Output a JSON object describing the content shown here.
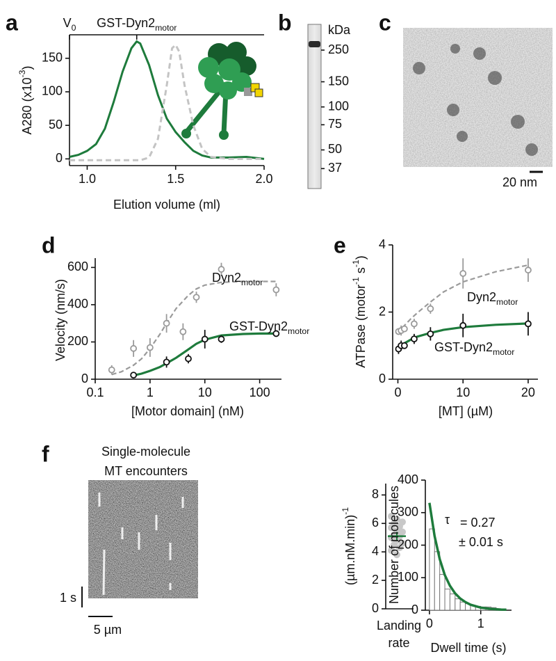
{
  "chart_data": [
    {
      "type": "line",
      "panel": "a",
      "xlabel": "Elution volume (ml)",
      "ylabel": [
        {
          "text": "A280 (x10"
        },
        {
          "sup": "-3"
        },
        {
          "text": ")"
        }
      ],
      "xlim": [
        0.9,
        2.0
      ],
      "xticks": [
        {
          "value": 1.0,
          "label": "1.0"
        },
        {
          "value": 1.5,
          "label": "1.5"
        },
        {
          "value": 2.0,
          "label": "2.0"
        }
      ],
      "ylim": [
        -10,
        185
      ],
      "yticks": [
        0,
        50,
        100,
        150
      ],
      "annotations": [
        {
          "parts": [
            {
              "text": "V"
            },
            {
              "sub": "0"
            }
          ],
          "x": 0.9
        },
        {
          "parts": [
            {
              "text": "GST-Dyn2"
            },
            {
              "sub": "motor"
            }
          ],
          "x": 1.28
        }
      ],
      "series": [
        {
          "color": "#1e7b3c",
          "style": "solid",
          "x": [
            0.9,
            0.95,
            1.0,
            1.05,
            1.1,
            1.15,
            1.2,
            1.25,
            1.28,
            1.3,
            1.35,
            1.4,
            1.45,
            1.5,
            1.55,
            1.6,
            1.65,
            1.7,
            1.8,
            1.9,
            2.0
          ],
          "values": [
            3,
            6,
            12,
            22,
            45,
            85,
            130,
            165,
            175,
            172,
            140,
            95,
            60,
            40,
            25,
            12,
            5,
            2,
            2,
            3,
            0
          ]
        },
        {
          "color": "#c4c4c4",
          "style": "dashed",
          "x": [
            0.9,
            1.1,
            1.3,
            1.35,
            1.4,
            1.45,
            1.48,
            1.5,
            1.52,
            1.55,
            1.6,
            1.65,
            1.7,
            1.8,
            2.0
          ],
          "values": [
            -2,
            -2,
            -2,
            2,
            30,
            110,
            165,
            170,
            160,
            110,
            50,
            15,
            3,
            0,
            0
          ]
        }
      ]
    },
    {
      "type": "gel",
      "panel": "b",
      "unit": "kDa",
      "log": true,
      "ylim": [
        30,
        320
      ],
      "yticks": [
        250,
        150,
        100,
        75,
        50,
        37
      ]
    },
    {
      "type": "image",
      "panel": "c",
      "scalebar": "20 nm"
    },
    {
      "type": "scatter",
      "panel": "d",
      "xlabel": "[Motor domain] (nM)",
      "ylabel": [
        {
          "text": "Velocity (nm/s)"
        }
      ],
      "xlog": true,
      "xlim": [
        0.1,
        250
      ],
      "xticks": [
        0.1,
        1,
        10,
        100
      ],
      "ylim": [
        0,
        650
      ],
      "yticks": [
        0,
        200,
        400,
        600
      ],
      "series": [
        {
          "name": [
            {
              "text": "Dyn2"
            },
            {
              "sub": "motor"
            }
          ],
          "color": "#9a9a9a",
          "label_color": "#222222",
          "x": [
            0.2,
            0.5,
            1,
            2,
            4,
            7,
            20,
            200
          ],
          "values": [
            50,
            165,
            170,
            300,
            255,
            440,
            590,
            480
          ],
          "errors": [
            25,
            45,
            50,
            50,
            45,
            30,
            35,
            35
          ],
          "fit": {
            "color": "#9a9a9a",
            "style": "dashed",
            "x": [
              0.2,
              0.3,
              0.5,
              0.7,
              1,
              1.5,
              2,
              3,
              5,
              7,
              10,
              20,
              50,
              100,
              200
            ],
            "values": [
              25,
              40,
              75,
              110,
              165,
              240,
              300,
              380,
              450,
              485,
              505,
              520,
              525,
              525,
              525
            ]
          }
        },
        {
          "name": [
            {
              "text": "GST-Dyn2"
            },
            {
              "sub": "motor"
            }
          ],
          "color": "#111111",
          "label_color": "#1e7b3c",
          "x": [
            0.5,
            2,
            5,
            10,
            20,
            200
          ],
          "values": [
            22,
            92,
            110,
            215,
            215,
            245
          ],
          "errors": [
            8,
            30,
            25,
            50,
            20,
            8
          ],
          "fit": {
            "color": "#1e7b3c",
            "style": "solid",
            "x": [
              0.5,
              0.7,
              1,
              1.5,
              2,
              3,
              5,
              7,
              10,
              20,
              50,
              100,
              200
            ],
            "values": [
              20,
              30,
              45,
              65,
              85,
              115,
              160,
              190,
              212,
              235,
              243,
              245,
              245
            ]
          }
        }
      ]
    },
    {
      "type": "scatter",
      "panel": "e",
      "xlabel": "[MT] (µM)",
      "ylabel": [
        {
          "text": "ATPase (motor"
        },
        {
          "sup": "-1"
        },
        {
          "text": " s"
        },
        {
          "sup": "-1"
        },
        {
          "text": ")"
        }
      ],
      "xlim": [
        -0.8,
        21.5
      ],
      "xticks": [
        0,
        10,
        20
      ],
      "ylim": [
        0,
        4
      ],
      "yticks": [
        0,
        2,
        4
      ],
      "series": [
        {
          "name": [
            {
              "text": "Dyn2"
            },
            {
              "sub": "motor"
            }
          ],
          "color": "#9a9a9a",
          "label_color": "#222222",
          "x": [
            0.1,
            0.5,
            1,
            2.5,
            5,
            10,
            20
          ],
          "values": [
            1.42,
            1.45,
            1.5,
            1.65,
            2.1,
            3.15,
            3.25
          ],
          "errors": [
            0.1,
            0.15,
            0.1,
            0.15,
            0.15,
            0.45,
            0.35
          ],
          "fit": {
            "color": "#9a9a9a",
            "style": "dashed",
            "x": [
              0,
              0.5,
              1,
              2,
              3,
              5,
              7,
              10,
              15,
              20
            ],
            "values": [
              1.35,
              1.48,
              1.6,
              1.8,
              1.98,
              2.3,
              2.6,
              2.9,
              3.2,
              3.4
            ]
          }
        },
        {
          "name": [
            {
              "text": "GST-Dyn2"
            },
            {
              "sub": "motor"
            }
          ],
          "color": "#111111",
          "label_color": "#1e7b3c",
          "x": [
            0.1,
            0.5,
            1,
            2.5,
            5,
            10,
            20
          ],
          "values": [
            0.9,
            1.0,
            1.0,
            1.2,
            1.35,
            1.6,
            1.65
          ],
          "errors": [
            0.15,
            0.15,
            0.1,
            0.15,
            0.2,
            0.35,
            0.35
          ],
          "fit": {
            "color": "#1e7b3c",
            "style": "solid",
            "x": [
              0,
              0.5,
              1,
              2,
              3,
              5,
              7,
              10,
              15,
              20
            ],
            "values": [
              0.9,
              1.0,
              1.07,
              1.18,
              1.27,
              1.38,
              1.47,
              1.55,
              1.62,
              1.66
            ]
          }
        }
      ]
    },
    {
      "type": "kymograph",
      "panel": "f",
      "title": [
        "Single-molecule",
        "MT encounters"
      ],
      "time_bar": "1 s",
      "length_bar": "5 µm"
    },
    {
      "type": "dotplot",
      "ylabel": [
        {
          "text": "(µm.nM.min)"
        },
        {
          "sup": "-1"
        }
      ],
      "xlabel": [
        "Landing",
        "rate"
      ],
      "ylim": [
        0,
        8.8
      ],
      "yticks": [
        0,
        2,
        4,
        6,
        8
      ],
      "color": "#c8c8c8",
      "mean_color": "#1e7b3c",
      "values": [
        6.5,
        6.3,
        6.1,
        6.0,
        5.8,
        5.7,
        5.5,
        5.4,
        5.2,
        5.1,
        5.0,
        4.8,
        4.6,
        4.5,
        4.3,
        4.1,
        3.8
      ],
      "mean": 5.1,
      "error": 0.3
    },
    {
      "type": "histogram",
      "xlabel": "Dwell time (s)",
      "ylabel": [
        {
          "text": "Number of molecules"
        }
      ],
      "xlim": [
        -0.08,
        1.6
      ],
      "xticks": [
        0,
        1
      ],
      "ylim": [
        0,
        400
      ],
      "yticks": [
        0,
        100,
        200,
        300,
        400
      ],
      "bins": [
        0,
        0.1,
        0.2,
        0.3,
        0.4,
        0.5,
        0.6,
        0.7,
        0.8,
        0.9,
        1.0,
        1.1,
        1.2,
        1.3
      ],
      "counts": [
        250,
        180,
        110,
        65,
        50,
        35,
        25,
        20,
        15,
        12,
        10,
        10,
        8
      ],
      "fit": {
        "color": "#1e7b3c",
        "x": [
          0,
          0.1,
          0.2,
          0.3,
          0.4,
          0.5,
          0.6,
          0.7,
          0.8,
          1.0,
          1.2,
          1.4,
          1.5
        ],
        "values": [
          330,
          228,
          157,
          108,
          75,
          52,
          36,
          25,
          17,
          8,
          4,
          2,
          1.5
        ]
      },
      "tau": {
        "symbol": "τ",
        "value": "= 0.27",
        "error": "± 0.01 s"
      }
    }
  ]
}
